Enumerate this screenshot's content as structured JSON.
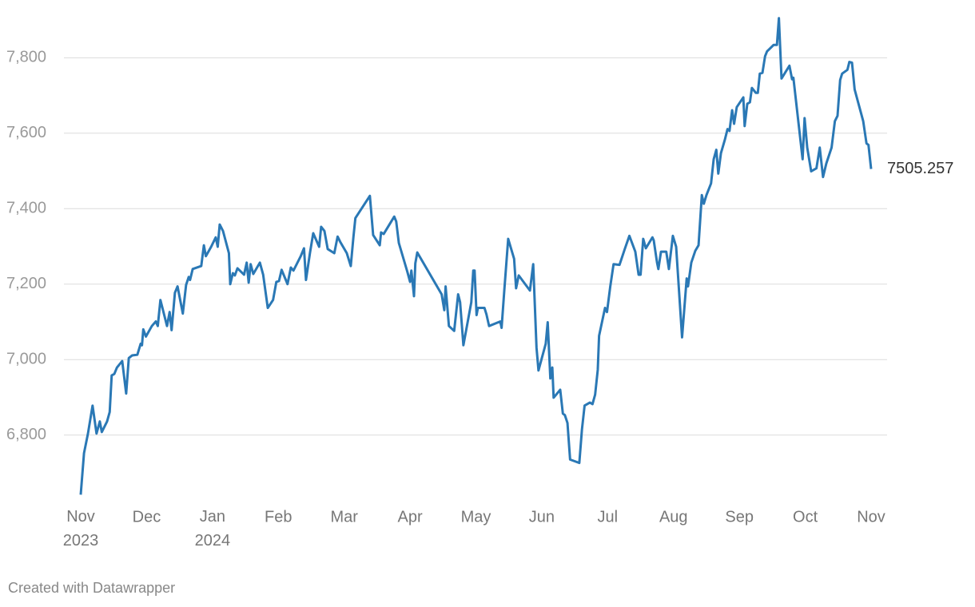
{
  "chart_data": {
    "type": "line",
    "credit": "Created with Datawrapper",
    "x": [
      0,
      0.05,
      0.11,
      0.18,
      0.24,
      0.29,
      0.32,
      0.4,
      0.44,
      0.47,
      0.51,
      0.55,
      0.63,
      0.69,
      0.73,
      0.78,
      0.86,
      0.91,
      0.93,
      0.95,
      0.99,
      1.08,
      1.14,
      1.17,
      1.21,
      1.31,
      1.35,
      1.38,
      1.43,
      1.47,
      1.55,
      1.6,
      1.64,
      1.66,
      1.7,
      1.83,
      1.87,
      1.9,
      1.98,
      2.05,
      2.08,
      2.11,
      2.16,
      2.25,
      2.27,
      2.31,
      2.34,
      2.38,
      2.48,
      2.52,
      2.55,
      2.58,
      2.62,
      2.72,
      2.77,
      2.84,
      2.92,
      2.97,
      3.01,
      3.05,
      3.14,
      3.19,
      3.23,
      3.34,
      3.39,
      3.42,
      3.48,
      3.53,
      3.62,
      3.65,
      3.7,
      3.75,
      3.85,
      3.9,
      3.94,
      4.04,
      4.1,
      4.14,
      4.17,
      4.39,
      4.44,
      4.54,
      4.56,
      4.6,
      4.76,
      4.79,
      4.83,
      4.96,
      5.0,
      5.02,
      5.06,
      5.08,
      5.11,
      5.48,
      5.52,
      5.54,
      5.59,
      5.67,
      5.73,
      5.76,
      5.81,
      5.93,
      5.96,
      5.98,
      6.01,
      6.03,
      6.13,
      6.16,
      6.2,
      6.37,
      6.39,
      6.43,
      6.49,
      6.58,
      6.61,
      6.65,
      6.82,
      6.87,
      6.92,
      6.95,
      7.06,
      7.09,
      7.13,
      7.16,
      7.18,
      7.28,
      7.32,
      7.35,
      7.39,
      7.43,
      7.57,
      7.61,
      7.65,
      7.73,
      7.77,
      7.81,
      7.85,
      7.87,
      7.96,
      7.99,
      8.04,
      8.09,
      8.18,
      8.26,
      8.33,
      8.42,
      8.47,
      8.5,
      8.54,
      8.58,
      8.68,
      8.7,
      8.75,
      8.77,
      8.81,
      8.89,
      8.93,
      8.99,
      9.04,
      9.13,
      9.2,
      9.22,
      9.27,
      9.33,
      9.38,
      9.43,
      9.46,
      9.5,
      9.57,
      9.61,
      9.65,
      9.68,
      9.72,
      9.78,
      9.82,
      9.85,
      9.89,
      9.92,
      9.96,
      10.06,
      10.08,
      10.12,
      10.16,
      10.19,
      10.25,
      10.28,
      10.31,
      10.35,
      10.39,
      10.42,
      10.52,
      10.57,
      10.6,
      10.64,
      10.76,
      10.8,
      10.82,
      10.96,
      10.99,
      11.03,
      11.09,
      11.17,
      11.22,
      11.27,
      11.32,
      11.4,
      11.45,
      11.49,
      11.53,
      11.56,
      11.64,
      11.67,
      11.71,
      11.75,
      11.88,
      11.93,
      11.96,
      12
    ],
    "series": [
      {
        "color": "#2a78b5",
        "values": [
          6642,
          6752,
          6804,
          6878,
          6804,
          6836,
          6808,
          6836,
          6861,
          6958,
          6962,
          6979,
          6996,
          6910,
          7004,
          7011,
          7013,
          7042,
          7038,
          7080,
          7061,
          7089,
          7101,
          7089,
          7158,
          7089,
          7126,
          7078,
          7177,
          7194,
          7122,
          7198,
          7219,
          7211,
          7240,
          7248,
          7303,
          7274,
          7299,
          7324,
          7299,
          7358,
          7341,
          7282,
          7200,
          7229,
          7223,
          7242,
          7225,
          7257,
          7204,
          7253,
          7227,
          7257,
          7225,
          7137,
          7158,
          7206,
          7208,
          7238,
          7200,
          7244,
          7236,
          7274,
          7295,
          7211,
          7282,
          7335,
          7299,
          7352,
          7341,
          7293,
          7282,
          7326,
          7312,
          7282,
          7248,
          7324,
          7375,
          7434,
          7330,
          7303,
          7337,
          7333,
          7379,
          7366,
          7309,
          7232,
          7206,
          7236,
          7168,
          7255,
          7284,
          7173,
          7131,
          7194,
          7089,
          7076,
          7173,
          7152,
          7038,
          7152,
          7236,
          7236,
          7118,
          7137,
          7137,
          7120,
          7089,
          7101,
          7084,
          7181,
          7320,
          7267,
          7189,
          7223,
          7183,
          7253,
          7032,
          6971,
          7042,
          7099,
          6950,
          6979,
          6899,
          6920,
          6857,
          6853,
          6832,
          6735,
          6726,
          6815,
          6878,
          6886,
          6882,
          6907,
          6973,
          7063,
          7137,
          7126,
          7194,
          7253,
          7251,
          7293,
          7328,
          7286,
          7225,
          7225,
          7320,
          7295,
          7324,
          7316,
          7257,
          7240,
          7286,
          7286,
          7240,
          7328,
          7299,
          7059,
          7215,
          7194,
          7257,
          7288,
          7303,
          7436,
          7413,
          7436,
          7467,
          7531,
          7556,
          7493,
          7547,
          7583,
          7611,
          7606,
          7661,
          7625,
          7669,
          7695,
          7619,
          7678,
          7682,
          7720,
          7707,
          7707,
          7758,
          7760,
          7804,
          7817,
          7834,
          7834,
          7905,
          7745,
          7779,
          7743,
          7747,
          7531,
          7640,
          7562,
          7499,
          7507,
          7562,
          7484,
          7520,
          7562,
          7632,
          7646,
          7741,
          7758,
          7768,
          7789,
          7787,
          7716,
          7632,
          7573,
          7569,
          7505.257
        ]
      }
    ],
    "xlim": [
      0,
      12
    ],
    "xticks": [
      {
        "value": 0,
        "label": "Nov 2023"
      },
      {
        "value": 1,
        "label": "Dec"
      },
      {
        "value": 2,
        "label": "Jan 2024"
      },
      {
        "value": 3,
        "label": "Feb"
      },
      {
        "value": 4,
        "label": "Mar"
      },
      {
        "value": 5,
        "label": "Apr"
      },
      {
        "value": 6,
        "label": "May"
      },
      {
        "value": 7,
        "label": "Jun"
      },
      {
        "value": 8,
        "label": "Jul"
      },
      {
        "value": 9,
        "label": "Aug"
      },
      {
        "value": 10,
        "label": "Sep"
      },
      {
        "value": 11,
        "label": "Oct"
      },
      {
        "value": 12,
        "label": "Nov"
      }
    ],
    "ylim": [
      6630,
      7915
    ],
    "yticks": [
      {
        "value": 6800,
        "label": "6,800"
      },
      {
        "value": 7000,
        "label": "7,000"
      },
      {
        "value": 7200,
        "label": "7,200"
      },
      {
        "value": 7400,
        "label": "7,400"
      },
      {
        "value": 7600,
        "label": "7,600"
      },
      {
        "value": 7800,
        "label": "7,800"
      }
    ],
    "grid": true
  }
}
